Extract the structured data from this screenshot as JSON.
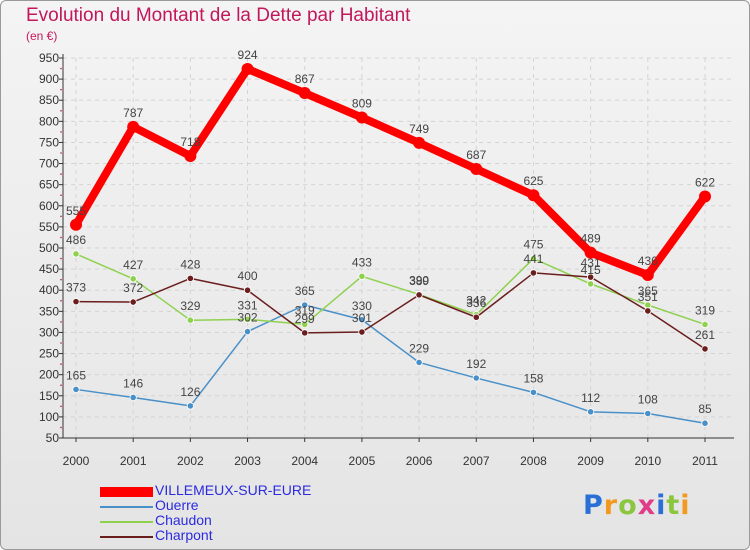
{
  "title": "Evolution du Montant de la Dette par Habitant",
  "unit_label": "(en €)",
  "chart_data": {
    "type": "line",
    "title": "Evolution du Montant de la Dette par Habitant",
    "subtitle": "(en €)",
    "xlabel": "",
    "ylabel": "",
    "x": [
      "2000",
      "2001",
      "2002",
      "2003",
      "2004",
      "2005",
      "2006",
      "2007",
      "2008",
      "2009",
      "2010",
      "2011"
    ],
    "ylim": [
      50,
      950
    ],
    "yticks": [
      50,
      100,
      150,
      200,
      250,
      300,
      350,
      400,
      450,
      500,
      550,
      600,
      650,
      700,
      750,
      800,
      850,
      900,
      950
    ],
    "grid": true,
    "legend_position": "bottom-left",
    "series": [
      {
        "name": "VILLEMEUX-SUR-EURE",
        "color": "#ff0000",
        "values": [
          555,
          787,
          718,
          924,
          867,
          809,
          749,
          687,
          625,
          489,
          436,
          622
        ],
        "labels": [
          "555",
          "787",
          "718",
          "924",
          "867",
          "809",
          "749",
          "687",
          "625",
          "489",
          "436",
          "622"
        ]
      },
      {
        "name": "Ouerre",
        "color": "#4a90c8",
        "values": [
          165,
          146,
          126,
          302,
          365,
          330,
          229,
          192,
          158,
          112,
          108,
          85
        ],
        "labels": [
          "165",
          "146",
          "126",
          "302",
          "365",
          "330",
          "229",
          "192",
          "158",
          "112",
          "108",
          "85"
        ]
      },
      {
        "name": "Chaudon",
        "color": "#8fd14f",
        "values": [
          486,
          427,
          329,
          331,
          319,
          433,
          390,
          342,
          475,
          415,
          365,
          319
        ],
        "labels": [
          "486",
          "427",
          "329",
          "331",
          "319",
          "433",
          "390",
          "342",
          "475",
          "415",
          "365",
          "319"
        ]
      },
      {
        "name": "Charpont",
        "color": "#6b1e1e",
        "values": [
          373,
          372,
          428,
          400,
          299,
          301,
          389,
          336,
          441,
          431,
          351,
          261
        ],
        "labels": [
          "373",
          "372",
          "428",
          "400",
          "299",
          "301",
          "389",
          "336",
          "441",
          "431",
          "351",
          "261"
        ]
      }
    ]
  },
  "logo": {
    "text": "Proxiti",
    "colors": [
      "#2a6fd6",
      "#f29a1e",
      "#8cc63f",
      "#e03c8a",
      "#2a6fd6",
      "#8cc63f",
      "#f29a1e"
    ]
  }
}
